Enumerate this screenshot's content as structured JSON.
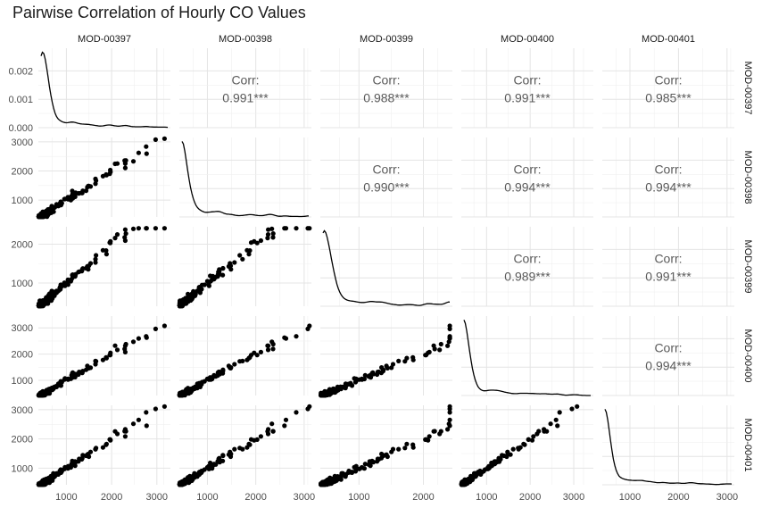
{
  "chart_data": {
    "type": "scatter",
    "title": "Pairwise Correlation of Hourly CO Values",
    "variables": [
      "MOD-00397",
      "MOD-00398",
      "MOD-00399",
      "MOD-00400",
      "MOD-00401"
    ],
    "corr_label": "Corr:",
    "correlations": [
      {
        "row": "MOD-00397",
        "col": "MOD-00398",
        "value": "0.991***"
      },
      {
        "row": "MOD-00397",
        "col": "MOD-00399",
        "value": "0.988***"
      },
      {
        "row": "MOD-00397",
        "col": "MOD-00400",
        "value": "0.991***"
      },
      {
        "row": "MOD-00397",
        "col": "MOD-00401",
        "value": "0.985***"
      },
      {
        "row": "MOD-00398",
        "col": "MOD-00399",
        "value": "0.990***"
      },
      {
        "row": "MOD-00398",
        "col": "MOD-00400",
        "value": "0.994***"
      },
      {
        "row": "MOD-00398",
        "col": "MOD-00401",
        "value": "0.994***"
      },
      {
        "row": "MOD-00399",
        "col": "MOD-00400",
        "value": "0.989***"
      },
      {
        "row": "MOD-00399",
        "col": "MOD-00401",
        "value": "0.991***"
      },
      {
        "row": "MOD-00400",
        "col": "MOD-00401",
        "value": "0.994***"
      }
    ],
    "ranges": [
      [
        380,
        3300
      ],
      [
        420,
        3150
      ],
      [
        400,
        2450
      ],
      [
        420,
        3450
      ],
      [
        430,
        3150
      ]
    ],
    "density_ylim": [
      0,
      0.0028
    ],
    "density_yticks": [
      "0.000",
      "0.001",
      "0.002"
    ],
    "axis_ticks": [
      [
        1000,
        2000,
        3000
      ],
      [
        1000,
        2000,
        3000
      ],
      [
        1000,
        2000
      ],
      [
        1000,
        2000,
        3000
      ],
      [
        1000,
        2000,
        3000
      ]
    ],
    "grid": true
  }
}
